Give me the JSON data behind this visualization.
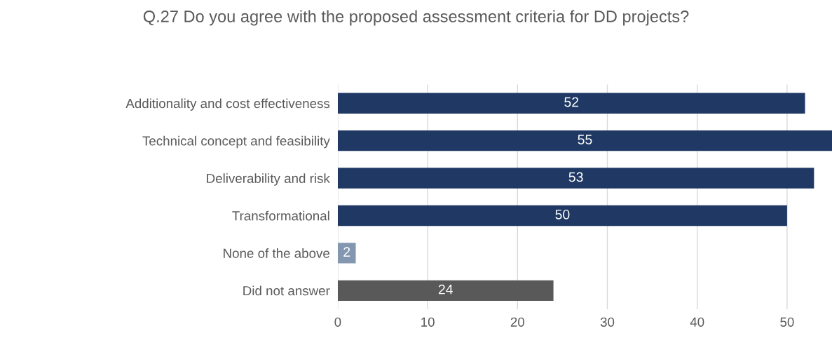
{
  "chart_data": {
    "type": "bar",
    "orientation": "horizontal",
    "title": "Q.27 Do you agree with the proposed assessment criteria for DD projects?",
    "categories": [
      "Additionality and cost effectiveness",
      "Technical concept and feasibility",
      "Deliverability and risk",
      "Transformational",
      "None of the above",
      "Did not answer"
    ],
    "values": [
      52,
      55,
      53,
      50,
      2,
      24
    ],
    "colors": [
      "#1f3864",
      "#1f3864",
      "#1f3864",
      "#1f3864",
      "#8497b0",
      "#595959"
    ],
    "xlim": [
      0,
      55
    ],
    "xticks": [
      0,
      10,
      20,
      30,
      40,
      50
    ],
    "grid": "x",
    "data_labels": true
  }
}
